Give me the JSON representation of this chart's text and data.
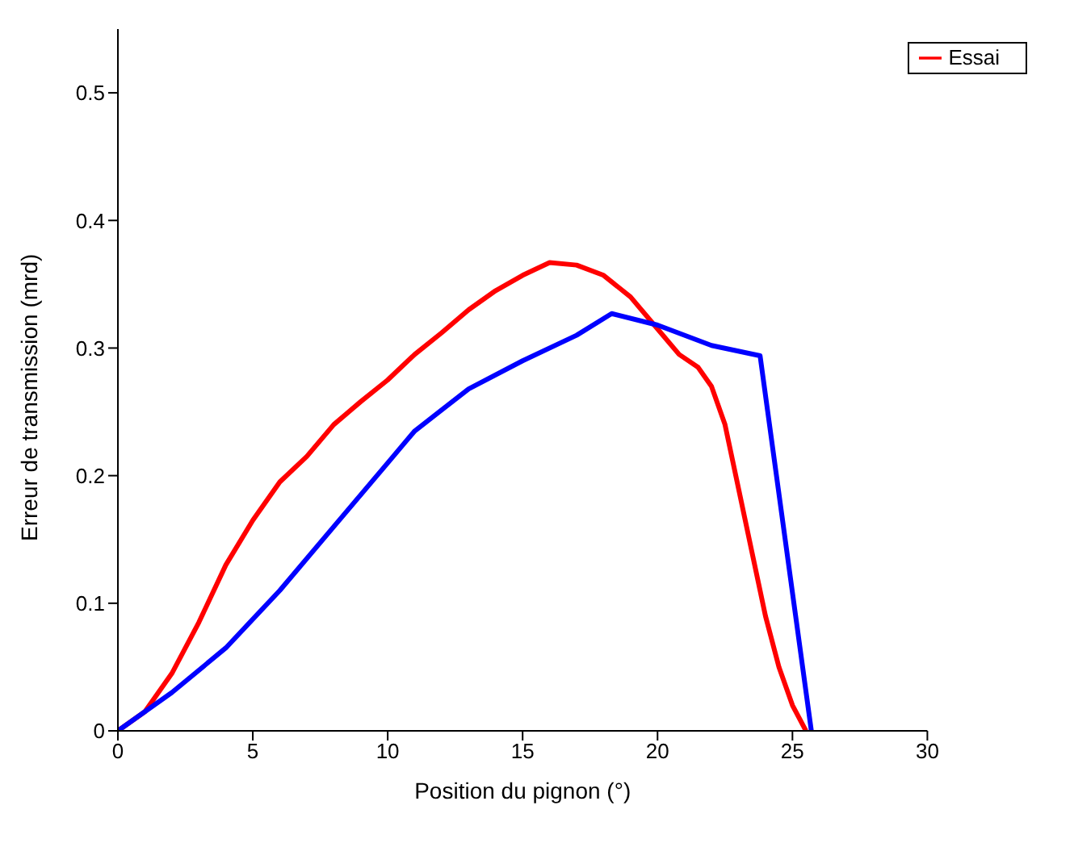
{
  "chart_data": {
    "type": "line",
    "xlabel": "Position du pignon (°)",
    "ylabel": "Erreur de transmission (mrd)",
    "xlim": [
      0,
      30
    ],
    "xticks": [
      0,
      5,
      10,
      15,
      20,
      25,
      30
    ],
    "ylim": [
      0,
      0.55
    ],
    "yticks": [
      0,
      0.1,
      0.2,
      0.3,
      0.4,
      0.5
    ],
    "grid": false,
    "legend": "top right",
    "marker": "none",
    "line_style": "solid",
    "series": [
      {
        "name": "Essai",
        "color": "#ff0000",
        "x": [
          0,
          1,
          2,
          3,
          4,
          5,
          6,
          7,
          8,
          9,
          10,
          11,
          12,
          13,
          14,
          15,
          16,
          17,
          18,
          19,
          20,
          20.8,
          21.5,
          22,
          22.5,
          23,
          23.5,
          24,
          24.5,
          25,
          25.5
        ],
        "values": [
          0,
          0.015,
          0.045,
          0.085,
          0.13,
          0.165,
          0.195,
          0.215,
          0.24,
          0.258,
          0.275,
          0.295,
          0.312,
          0.33,
          0.345,
          0.357,
          0.367,
          0.365,
          0.357,
          0.34,
          0.315,
          0.295,
          0.285,
          0.27,
          0.24,
          0.19,
          0.14,
          0.09,
          0.05,
          0.02,
          0
        ]
      },
      {
        "color": "#0000ff",
        "x": [
          0,
          2,
          4,
          6,
          8,
          10,
          11,
          13,
          15,
          17,
          18.3,
          20,
          22,
          23.8,
          25.7
        ],
        "values": [
          0,
          0.03,
          0.065,
          0.11,
          0.16,
          0.21,
          0.235,
          0.268,
          0.29,
          0.31,
          0.327,
          0.318,
          0.302,
          0.294,
          0
        ]
      }
    ]
  }
}
